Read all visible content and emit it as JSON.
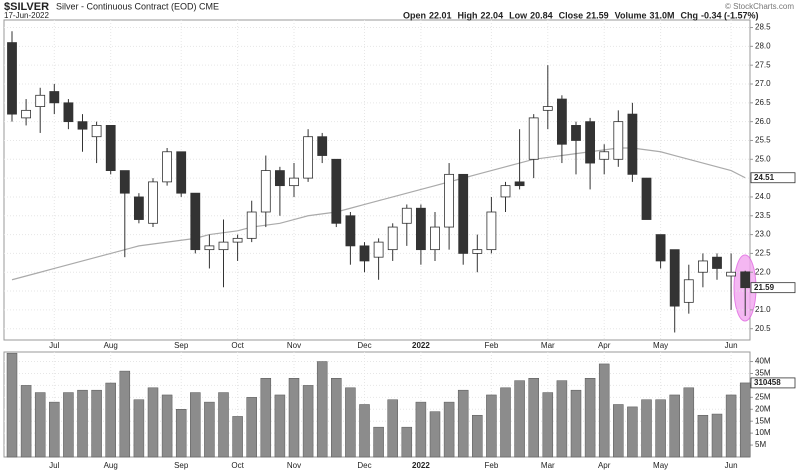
{
  "chart_data": {
    "type": "candlestick",
    "title": "$SILVER",
    "subtitle": "Silver - Continuous Contract (EOD) CME",
    "date": "17-Jun-2022",
    "credit": "© StockCharts.com",
    "quote": [
      {
        "label": "Open",
        "value": "22.01"
      },
      {
        "label": "High",
        "value": "22.04"
      },
      {
        "label": "Low",
        "value": "20.84"
      },
      {
        "label": "Close",
        "value": "21.59"
      },
      {
        "label": "Volume",
        "value": "31.0M"
      },
      {
        "label": "Chg",
        "value": "-0.34 (-1.57%)"
      }
    ],
    "categories": [
      null,
      null,
      null,
      "Jul",
      null,
      null,
      null,
      "Aug",
      null,
      null,
      null,
      null,
      "Sep",
      null,
      null,
      null,
      "Oct",
      null,
      null,
      null,
      "Nov",
      null,
      null,
      null,
      null,
      "Dec",
      null,
      null,
      null,
      "2022",
      null,
      null,
      null,
      null,
      "Feb",
      null,
      null,
      null,
      "Mar",
      null,
      null,
      null,
      "Apr",
      null,
      null,
      null,
      "May",
      null,
      null,
      null,
      null,
      "Jun",
      null
    ],
    "open": [
      28.1,
      26.1,
      26.4,
      26.8,
      26.5,
      26.0,
      25.6,
      25.9,
      24.7,
      24.0,
      23.3,
      24.4,
      25.2,
      24.1,
      22.6,
      22.6,
      22.8,
      22.9,
      23.6,
      24.7,
      24.3,
      24.5,
      25.6,
      25.0,
      23.5,
      22.7,
      22.4,
      22.6,
      23.3,
      23.7,
      22.6,
      23.2,
      24.6,
      22.5,
      22.6,
      24.0,
      24.4,
      25.0,
      26.3,
      26.6,
      25.9,
      26.0,
      25.0,
      25.0,
      26.2,
      24.5,
      23.0,
      22.6,
      21.2,
      22.0,
      22.4,
      21.9,
      22.01
    ],
    "high": [
      28.4,
      26.6,
      26.9,
      27.0,
      26.6,
      26.2,
      26.0,
      25.9,
      24.7,
      24.1,
      24.5,
      25.3,
      25.2,
      24.1,
      23.0,
      23.4,
      23.0,
      23.9,
      25.1,
      24.8,
      24.9,
      25.8,
      25.7,
      25.0,
      23.6,
      22.8,
      22.9,
      23.3,
      23.8,
      23.8,
      23.6,
      24.9,
      24.6,
      23.0,
      24.0,
      24.4,
      25.8,
      26.2,
      27.5,
      26.7,
      26.0,
      26.1,
      25.4,
      26.3,
      26.5,
      24.5,
      23.0,
      22.6,
      22.2,
      22.5,
      22.5,
      22.5,
      22.04
    ],
    "low": [
      26.0,
      25.9,
      25.7,
      26.2,
      25.8,
      25.2,
      24.9,
      24.6,
      22.4,
      23.3,
      23.2,
      24.3,
      24.0,
      22.5,
      22.1,
      21.6,
      22.3,
      22.8,
      23.2,
      23.5,
      24.0,
      24.4,
      24.9,
      23.2,
      22.2,
      22.0,
      21.8,
      22.3,
      22.7,
      22.2,
      22.3,
      22.6,
      22.2,
      22.0,
      22.5,
      23.6,
      24.2,
      24.5,
      25.8,
      24.9,
      24.6,
      24.2,
      24.6,
      24.8,
      24.4,
      23.4,
      22.1,
      20.4,
      20.9,
      21.6,
      21.8,
      21.0,
      20.84
    ],
    "close": [
      26.2,
      26.3,
      26.7,
      26.5,
      26.0,
      25.8,
      25.9,
      24.7,
      24.1,
      23.4,
      24.4,
      25.2,
      24.1,
      22.6,
      22.7,
      22.8,
      22.9,
      23.6,
      24.7,
      24.3,
      24.5,
      25.6,
      25.1,
      23.3,
      22.7,
      22.3,
      22.8,
      23.2,
      23.7,
      22.6,
      23.2,
      24.6,
      22.5,
      22.6,
      23.6,
      24.3,
      24.3,
      26.1,
      26.4,
      25.4,
      25.5,
      24.9,
      25.2,
      26.0,
      24.6,
      23.4,
      22.3,
      21.1,
      21.8,
      22.3,
      22.1,
      22.0,
      21.59
    ],
    "up_color": "#ffffff",
    "down_color": "#333333",
    "ylim": [
      20.2,
      28.7
    ],
    "yticks": [
      20.5,
      {
        "value": 21,
        "label": "21.0"
      },
      21.5,
      {
        "value": 22,
        "label": "22.0"
      },
      22.5,
      {
        "value": 23,
        "label": "23.0"
      },
      23.5,
      {
        "value": 24,
        "label": "24.0"
      },
      24.5,
      {
        "value": 25,
        "label": "25.0"
      },
      25.5,
      {
        "value": 26,
        "label": "26.0"
      },
      26.5,
      {
        "value": 27,
        "label": "27.0"
      },
      27.5,
      {
        "value": 28,
        "label": "28.0"
      },
      28.5
    ],
    "grid": true,
    "ma": {
      "color": "#aaaaaa",
      "values": [
        21.8,
        21.9,
        22.0,
        22.1,
        22.2,
        22.3,
        22.4,
        22.5,
        22.6,
        22.7,
        22.75,
        22.8,
        22.85,
        22.9,
        23.0,
        23.05,
        23.1,
        23.2,
        23.25,
        23.3,
        23.4,
        23.5,
        23.55,
        23.6,
        23.7,
        23.8,
        23.9,
        24.0,
        24.1,
        24.2,
        24.3,
        24.4,
        24.5,
        24.6,
        24.7,
        24.8,
        24.9,
        25.0,
        25.05,
        25.1,
        25.15,
        25.2,
        25.25,
        25.3,
        25.3,
        25.25,
        25.2,
        25.1,
        25.0,
        24.9,
        24.8,
        24.7,
        24.51
      ]
    },
    "volume": {
      "color": "#8c8c8c",
      "values": [
        43.5,
        30,
        27,
        23,
        27,
        28,
        28,
        31,
        36,
        24,
        29,
        26,
        20,
        27,
        23,
        27,
        17,
        25,
        33,
        26,
        33,
        30,
        40,
        33,
        29,
        22,
        12.5,
        24,
        12.5,
        23,
        19,
        23,
        28,
        17.5,
        26,
        29,
        32,
        33,
        27,
        32,
        28,
        33,
        39,
        22,
        21,
        24,
        24,
        26,
        29,
        17.5,
        18,
        26,
        31.0458
      ],
      "last_label": "310458",
      "ylim": [
        0,
        44
      ],
      "yticks": [
        {
          "value": 5,
          "label": "5M"
        },
        {
          "value": 10,
          "label": "10M"
        },
        {
          "value": 15,
          "label": "15M"
        },
        {
          "value": 20,
          "label": "20M"
        },
        {
          "value": 25,
          "label": "25M"
        },
        {
          "value": 30,
          "label": "30M"
        },
        {
          "value": 35,
          "label": "35M"
        },
        {
          "value": 40,
          "label": "40M"
        }
      ]
    }
  }
}
